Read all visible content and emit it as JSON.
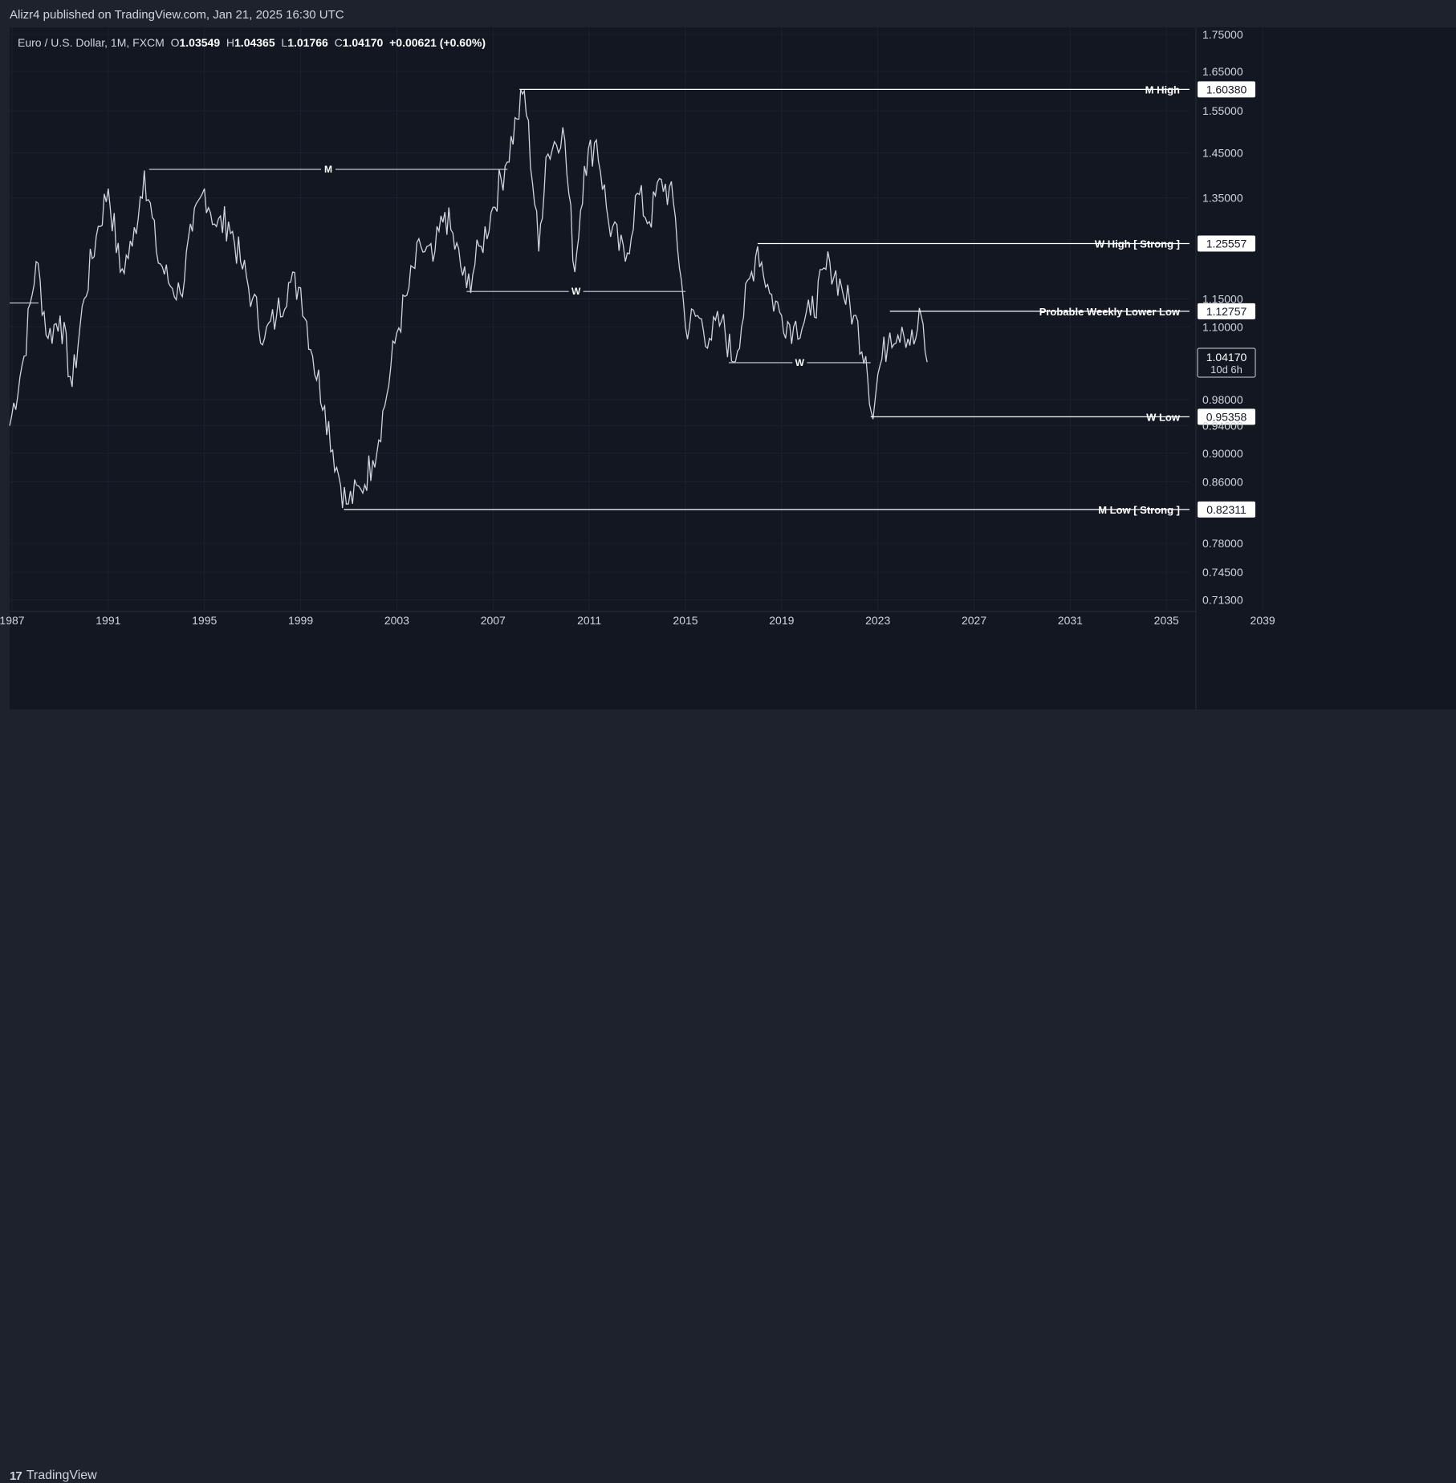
{
  "header": {
    "published": "Alizr4 published on TradingView.com, Jan 21, 2025 16:30 UTC"
  },
  "legend": {
    "symbol": "Euro / U.S. Dollar, 1M, FXCM",
    "o_label": "O",
    "o": "1.03549",
    "h_label": "H",
    "h": "1.04365",
    "l_label": "L",
    "l": "1.01766",
    "c_label": "C",
    "c": "1.04170",
    "change": "+0.00621 (+0.60%)"
  },
  "footer": {
    "logo_mark": "17",
    "brand": "TradingView"
  },
  "colors": {
    "background": "#131722",
    "frame": "#1e222d",
    "grid": "#1c2030",
    "text": "#d1d4dc",
    "candles": "#d1d4dc",
    "price_tag": "#ffffff"
  },
  "chart_data": {
    "type": "line",
    "price_axis": {
      "ticks": [
        "1.75000",
        "1.65000",
        "1.55000",
        "1.45000",
        "1.35000",
        "1.15000",
        "1.10000",
        "0.98000",
        "0.94000",
        "0.90000",
        "0.86000",
        "0.78000",
        "0.74500",
        "0.71300"
      ],
      "ylim": [
        0.7,
        1.77
      ],
      "scale": "log"
    },
    "time_axis": {
      "ticks": [
        "1987",
        "1991",
        "1995",
        "1999",
        "2003",
        "2007",
        "2011",
        "2015",
        "2019",
        "2023",
        "2027",
        "2031",
        "2035",
        "2039"
      ],
      "xlim": [
        1986.9,
        2042.3
      ]
    },
    "grid": true,
    "series": [
      {
        "x": [
          1986.9,
          1987.5,
          1988.0,
          1988.5,
          1989.0,
          1989.5,
          1990.0,
          1990.5,
          1991.0,
          1991.5,
          1992.0,
          1992.5,
          1993.0,
          1993.5,
          1994.0,
          1994.5,
          1995.0,
          1995.5,
          1996.0,
          1996.5,
          1997.0,
          1997.5,
          1998.0,
          1998.5,
          1999.0,
          1999.5,
          2000.0,
          2000.5,
          2000.9,
          2001.5,
          2002.0,
          2002.5,
          2003.0,
          2003.5,
          2004.0,
          2004.5,
          2005.0,
          2005.9,
          2006.5,
          2007.0,
          2007.5,
          2008.0,
          2008.3,
          2008.9,
          2009.2,
          2009.9,
          2010.4,
          2010.8,
          2011.3,
          2011.8,
          2012.5,
          2013.0,
          2013.5,
          2014.0,
          2014.5,
          2015.0,
          2015.5,
          2016.0,
          2016.5,
          2017.0,
          2018.0,
          2018.5,
          2019.0,
          2019.5,
          2020.2,
          2021.0,
          2021.5,
          2022.0,
          2022.5,
          2022.8,
          2023.0,
          2023.5,
          2024.0,
          2024.5,
          2024.8,
          2025.05
        ],
        "values": [
          0.94,
          1.05,
          1.22,
          1.08,
          1.12,
          1.0,
          1.15,
          1.27,
          1.37,
          1.2,
          1.25,
          1.41,
          1.24,
          1.18,
          1.16,
          1.28,
          1.37,
          1.29,
          1.3,
          1.22,
          1.15,
          1.08,
          1.12,
          1.18,
          1.17,
          1.05,
          0.97,
          0.88,
          0.83,
          0.85,
          0.89,
          0.97,
          1.09,
          1.17,
          1.25,
          1.22,
          1.32,
          1.17,
          1.25,
          1.33,
          1.42,
          1.53,
          1.6,
          1.24,
          1.44,
          1.51,
          1.2,
          1.42,
          1.48,
          1.3,
          1.22,
          1.36,
          1.3,
          1.39,
          1.34,
          1.1,
          1.12,
          1.08,
          1.11,
          1.04,
          1.25,
          1.16,
          1.12,
          1.1,
          1.12,
          1.22,
          1.17,
          1.12,
          1.05,
          0.95,
          1.02,
          1.09,
          1.1,
          1.07,
          1.12,
          1.04
        ]
      }
    ],
    "levels": [
      {
        "label": "M High",
        "value": "1.60380",
        "from": 2008.1
      },
      {
        "label": "W High [ Strong ]",
        "value": "1.25557",
        "from": 2018.0
      },
      {
        "label": "Probable Weekly Lower Low",
        "value": "1.12757",
        "from": 2023.5
      },
      {
        "label": "W Low",
        "value": "0.95358",
        "from": 2022.7
      },
      {
        "label": "M Low [ Strong ]",
        "value": "0.82311",
        "from": 2000.8
      }
    ],
    "pattern_lines": [
      {
        "label": "M",
        "value": 1.4125,
        "from": 1992.7,
        "to": 2007.6
      },
      {
        "label": "W",
        "value": 1.1636,
        "from": 2005.9,
        "to": 2015.0
      },
      {
        "label": "W",
        "value": 1.0392,
        "from": 2016.8,
        "to": 2022.7
      }
    ],
    "left_stub": {
      "value": 1.1425,
      "from": 1986.9,
      "to": 1988.1
    },
    "current_price": {
      "value": "1.04170",
      "countdown": "10d 6h"
    }
  }
}
